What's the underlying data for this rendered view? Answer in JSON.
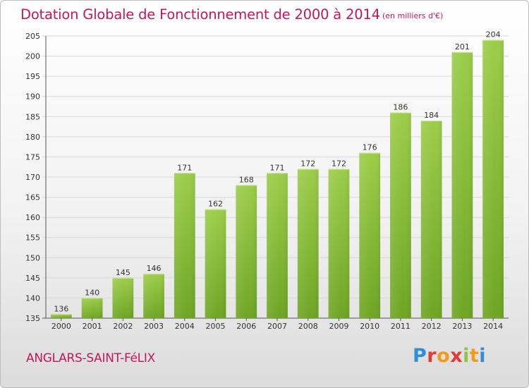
{
  "header": {
    "title": "Dotation Globale de Fonctionnement de 2000 à 2014",
    "unit": "(en milliers d'€)"
  },
  "footer": {
    "commune": "ANGLARS-SAINT-FéLIX",
    "logo": {
      "letters": [
        "P",
        "r",
        "o",
        "x",
        "i",
        "t",
        "i"
      ]
    }
  },
  "chart_data": {
    "type": "bar",
    "title": "Dotation Globale de Fonctionnement de 2000 à 2014",
    "subtitle": "(en milliers d'€)",
    "xlabel": "",
    "ylabel": "",
    "categories": [
      "2000",
      "2001",
      "2002",
      "2003",
      "2004",
      "2005",
      "2006",
      "2007",
      "2008",
      "2009",
      "2010",
      "2011",
      "2012",
      "2013",
      "2014"
    ],
    "values": [
      136,
      140,
      145,
      146,
      171,
      162,
      168,
      171,
      172,
      172,
      176,
      186,
      184,
      201,
      204
    ],
    "data_labels": [
      "136",
      "140",
      "145",
      "146",
      "171",
      "162",
      "168",
      "171",
      "172",
      "172",
      "176",
      "186",
      "184",
      "201",
      "204"
    ],
    "ylim": [
      135,
      205
    ],
    "yticks": [
      135,
      140,
      145,
      150,
      155,
      160,
      165,
      170,
      175,
      180,
      185,
      190,
      195,
      200,
      205
    ],
    "grid": true,
    "legend": "none",
    "colors": {
      "bar_light": "#9ccd4a",
      "bar_dark": "#6ea524",
      "grid": "#d8d8d8",
      "accent": "#c2185b"
    }
  }
}
